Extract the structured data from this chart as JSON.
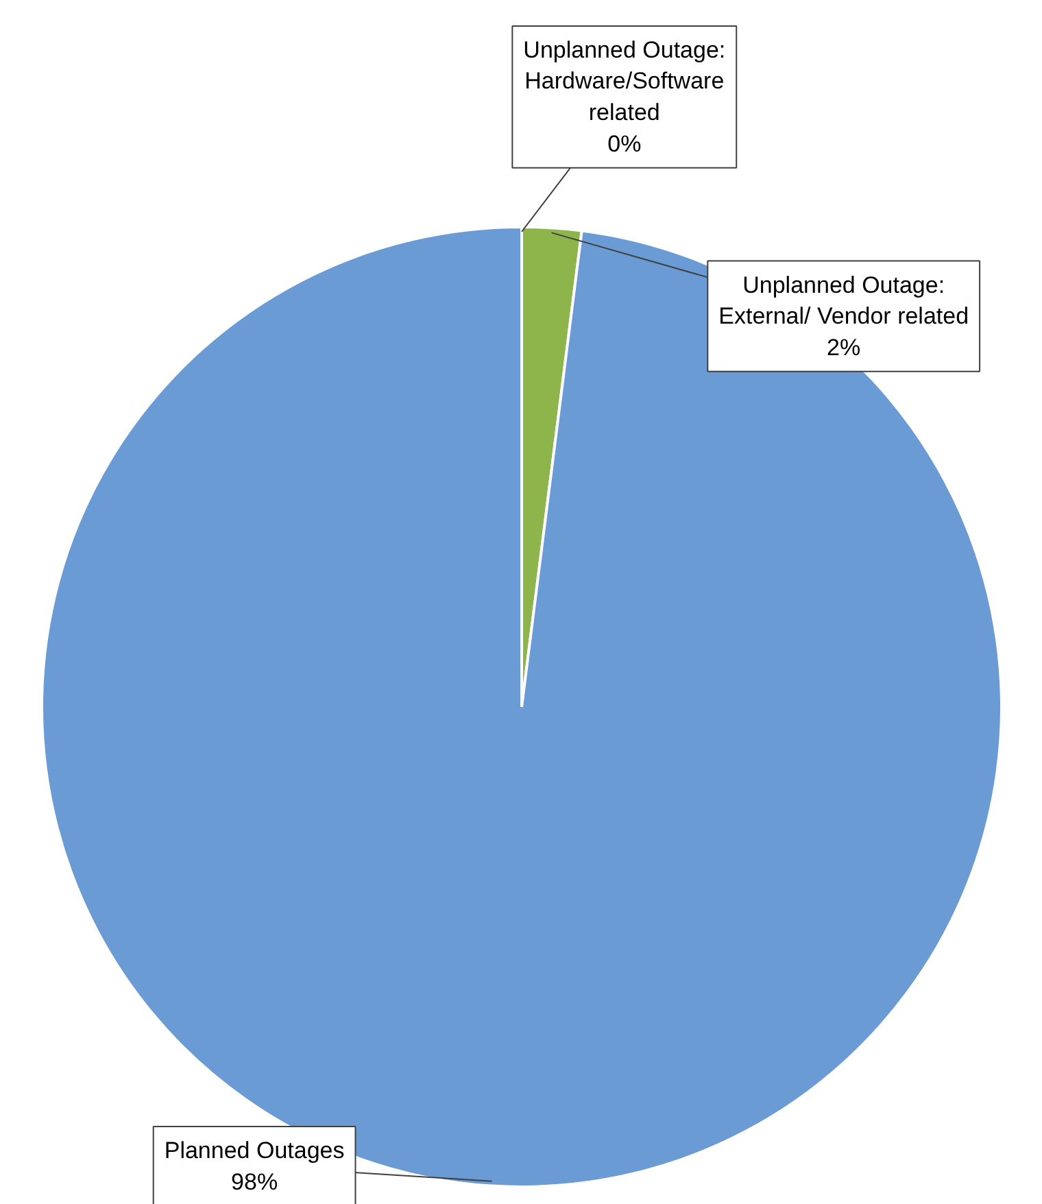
{
  "chart_data": {
    "type": "pie",
    "categories": [
      "Unplanned Outage: Hardware/Software related",
      "Unplanned Outage: External/ Vendor related",
      "Planned Outages"
    ],
    "values": [
      0,
      2,
      98
    ],
    "colors": [
      "#c0504d",
      "#8db54b",
      "#6a9bd4"
    ],
    "value_labels": [
      "0%",
      "2%",
      "98%"
    ]
  }
}
